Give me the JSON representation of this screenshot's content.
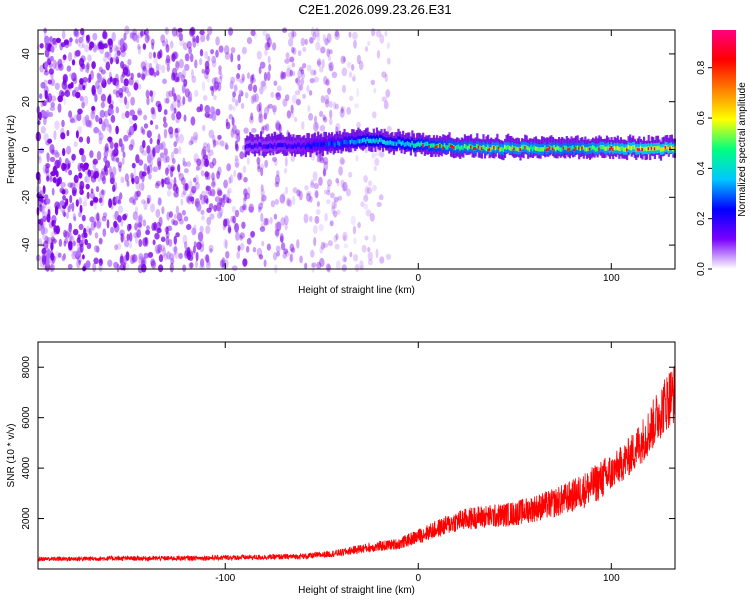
{
  "title": "C2E1.2026.099.23.26.E31",
  "chart_data": [
    {
      "type": "heatmap",
      "name": "spectrogram",
      "xlabel": "Height of straight line (km)",
      "ylabel": "Frequency (Hz)",
      "xlim": [
        -197,
        133
      ],
      "ylim": [
        -50,
        50
      ],
      "x_ticks": [
        -100,
        0,
        100
      ],
      "x_tick_labels": [
        "-100",
        "0",
        "100"
      ],
      "y_ticks": [
        -40,
        -20,
        0,
        20,
        40
      ],
      "y_tick_labels": [
        "-40",
        "-20",
        "0",
        "20",
        "40"
      ],
      "colorbar": {
        "label": "Normalized spectral amplitude",
        "range": [
          0.0,
          0.95
        ],
        "ticks": [
          0.0,
          0.2,
          0.4,
          0.6,
          0.8
        ],
        "tick_labels": [
          "0.0",
          "0.2",
          "0.4",
          "0.6",
          "0.8"
        ],
        "colormap": [
          "#ffffff",
          "#7a00ff",
          "#0000ff",
          "#00c8ff",
          "#00ff80",
          "#ffff00",
          "#ff8000",
          "#ff0000",
          "#ff0080"
        ]
      },
      "description_regions": {
        "noise_extent_x": [
          -197,
          -15
        ],
        "signal_band_x": [
          -90,
          133
        ],
        "signal_band_center_hz": 1.5,
        "signal_band_halfwidth_hz": 4
      },
      "signal_band_amplitude_profile": {
        "x": [
          -90,
          -60,
          -40,
          -25,
          -15,
          0,
          10,
          20,
          40,
          60,
          80,
          100,
          120,
          133
        ],
        "center_hz": [
          1.5,
          1.5,
          2.5,
          4,
          3,
          2,
          1.5,
          1,
          0.5,
          0.5,
          0.5,
          0.5,
          0.5,
          0.5
        ],
        "amplitude": [
          0.2,
          0.25,
          0.4,
          0.55,
          0.5,
          0.6,
          0.65,
          0.7,
          0.75,
          0.75,
          0.7,
          0.8,
          0.85,
          0.9
        ]
      }
    },
    {
      "type": "line",
      "name": "snr",
      "xlabel": "Height of straight line (km)",
      "ylabel": "SNR (10 * v/v)",
      "xlim": [
        -197,
        133
      ],
      "ylim": [
        0,
        9000
      ],
      "x_ticks": [
        -100,
        0,
        100
      ],
      "x_tick_labels": [
        "-100",
        "0",
        "100"
      ],
      "y_ticks": [
        2000,
        4000,
        6000,
        8000
      ],
      "y_tick_labels": [
        "2000",
        "4000",
        "6000",
        "8000"
      ],
      "color": "#ff0000",
      "series": [
        {
          "x": [
            -197,
            -180,
            -160,
            -140,
            -120,
            -100,
            -80,
            -60,
            -50,
            -40,
            -30,
            -20,
            -10,
            0,
            10,
            20,
            30,
            40,
            50,
            60,
            70,
            80,
            90,
            100,
            110,
            120,
            125,
            130,
            133
          ],
          "values": [
            400,
            400,
            420,
            420,
            430,
            450,
            470,
            500,
            560,
            650,
            800,
            900,
            1000,
            1300,
            1600,
            1900,
            2050,
            2100,
            2200,
            2400,
            2600,
            2900,
            3300,
            3800,
            4500,
            5500,
            6200,
            6800,
            7000
          ]
        }
      ]
    }
  ]
}
